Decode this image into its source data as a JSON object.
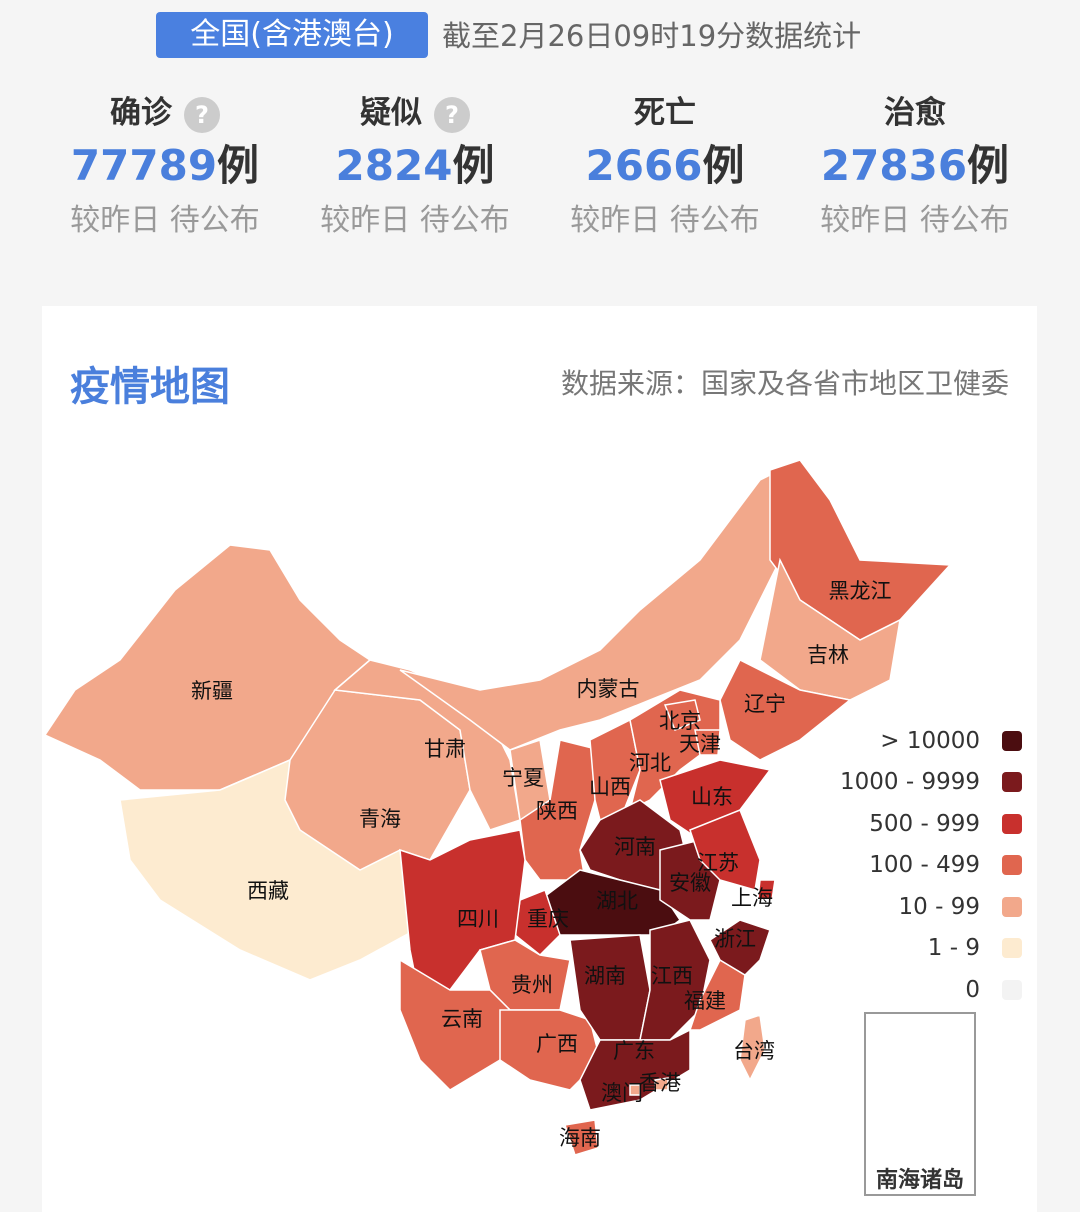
{
  "header": {
    "scope_badge": "全国(含港澳台)",
    "as_of": "截至2月26日09时19分数据统计"
  },
  "stats": [
    {
      "label": "确诊",
      "value": "77789",
      "unit": "例",
      "change": "较昨日 待公布",
      "help": true
    },
    {
      "label": "疑似",
      "value": "2824",
      "unit": "例",
      "change": "较昨日 待公布",
      "help": true
    },
    {
      "label": "死亡",
      "value": "2666",
      "unit": "例",
      "change": "较昨日 待公布",
      "help": false
    },
    {
      "label": "治愈",
      "value": "27836",
      "unit": "例",
      "change": "较昨日 待公布",
      "help": false
    }
  ],
  "help_icon": "?",
  "map": {
    "title": "疫情地图",
    "source": "数据来源：国家及各省市地区卫健委",
    "inset_label": "南海诸岛",
    "legend": [
      {
        "label": "> 10000",
        "color": "#4b0d10"
      },
      {
        "label": "1000 - 9999",
        "color": "#7b1a1d"
      },
      {
        "label": "500 - 999",
        "color": "#c8302d"
      },
      {
        "label": "100 - 499",
        "color": "#e0664f"
      },
      {
        "label": "10 - 99",
        "color": "#f2a88b"
      },
      {
        "label": "1 - 9",
        "color": "#fdebd0"
      },
      {
        "label": "0",
        "color": "#f3f3f3"
      }
    ],
    "regions": [
      {
        "name": "新疆",
        "level": 4
      },
      {
        "name": "西藏",
        "level": 5
      },
      {
        "name": "青海",
        "level": 4
      },
      {
        "name": "甘肃",
        "level": 4
      },
      {
        "name": "内蒙古",
        "level": 4
      },
      {
        "name": "黑龙江",
        "level": 3
      },
      {
        "name": "吉林",
        "level": 4
      },
      {
        "name": "辽宁",
        "level": 3
      },
      {
        "name": "宁夏",
        "level": 4
      },
      {
        "name": "陕西",
        "level": 3
      },
      {
        "name": "山西",
        "level": 3
      },
      {
        "name": "河北",
        "level": 3
      },
      {
        "name": "北京",
        "level": 3
      },
      {
        "name": "天津",
        "level": 3
      },
      {
        "name": "山东",
        "level": 2
      },
      {
        "name": "河南",
        "level": 1
      },
      {
        "name": "湖北",
        "level": 0
      },
      {
        "name": "重庆",
        "level": 2
      },
      {
        "name": "四川",
        "level": 2
      },
      {
        "name": "贵州",
        "level": 3
      },
      {
        "name": "云南",
        "level": 3
      },
      {
        "name": "广西",
        "level": 3
      },
      {
        "name": "湖南",
        "level": 1
      },
      {
        "name": "江西",
        "level": 1
      },
      {
        "name": "广东",
        "level": 1
      },
      {
        "name": "福建",
        "level": 3
      },
      {
        "name": "浙江",
        "level": 1
      },
      {
        "name": "安徽",
        "level": 1
      },
      {
        "name": "江苏",
        "level": 2
      },
      {
        "name": "上海",
        "level": 2
      },
      {
        "name": "台湾",
        "level": 4
      },
      {
        "name": "海南",
        "level": 3
      },
      {
        "name": "香港",
        "level": 4
      },
      {
        "name": "澳门",
        "level": 4
      }
    ]
  }
}
